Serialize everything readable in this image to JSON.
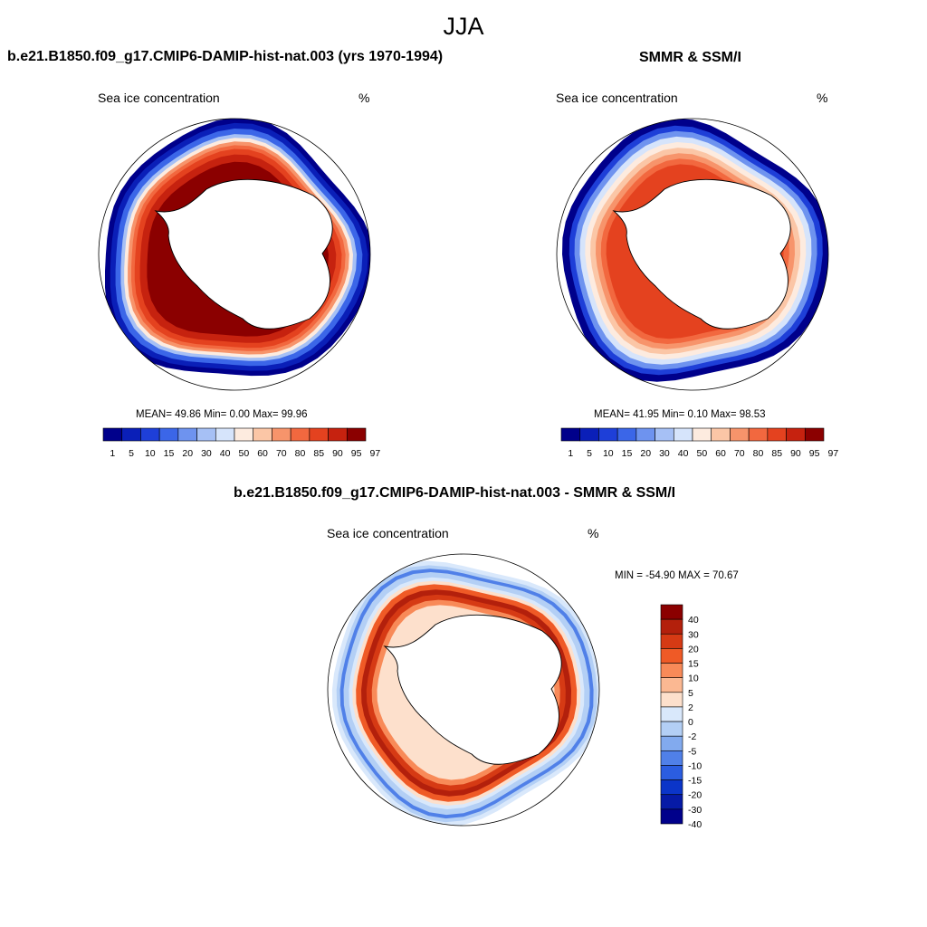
{
  "season": "JJA",
  "colors": {
    "conc": [
      "#00008b",
      "#0a1fb8",
      "#1e3fd8",
      "#3b66e8",
      "#6e93ef",
      "#a6c0f5",
      "#d6e4fb",
      "#fdebdf",
      "#fbc6a6",
      "#f7946b",
      "#f2683f",
      "#e4421f",
      "#c6220f",
      "#8b0000"
    ],
    "diff": [
      "#8b0000",
      "#b3200c",
      "#d63a14",
      "#ef5a26",
      "#f88a58",
      "#fbb892",
      "#fde0cc",
      "#d9e8fb",
      "#b3cff5",
      "#82aaee",
      "#5080e8",
      "#2b5de0",
      "#0b35c9",
      "#061aa6",
      "#00008b"
    ],
    "coast": "#000000"
  },
  "panels": {
    "model": {
      "title": "b.e21.B1850.f09_g17.CMIP6-DAMIP-hist-nat.003 (yrs 1970-1994)",
      "left_label": "Sea ice concentration",
      "right_label": "%",
      "stats": "MEAN=  49.86  Min=   0.00  Max=  99.96"
    },
    "obs": {
      "title": "SMMR & SSM/I",
      "left_label": "Sea ice concentration",
      "right_label": "%",
      "stats": "MEAN=  41.95  Min=   0.10  Max=  98.53"
    },
    "diff": {
      "title": "b.e21.B1850.f09_g17.CMIP6-DAMIP-hist-nat.003 - SMMR & SSM/I",
      "left_label": "Sea ice concentration",
      "right_label": "%",
      "stats": "MIN = -54.90 MAX =  70.67"
    }
  },
  "colorbar_conc": {
    "labels": [
      "1",
      "5",
      "10",
      "15",
      "20",
      "30",
      "40",
      "50",
      "60",
      "70",
      "80",
      "85",
      "90",
      "95",
      "97"
    ]
  },
  "colorbar_diff": {
    "labels": [
      "40",
      "30",
      "20",
      "15",
      "10",
      "5",
      "2",
      "0",
      "-2",
      "-5",
      "-10",
      "-15",
      "-20",
      "-30",
      "-40"
    ]
  }
}
